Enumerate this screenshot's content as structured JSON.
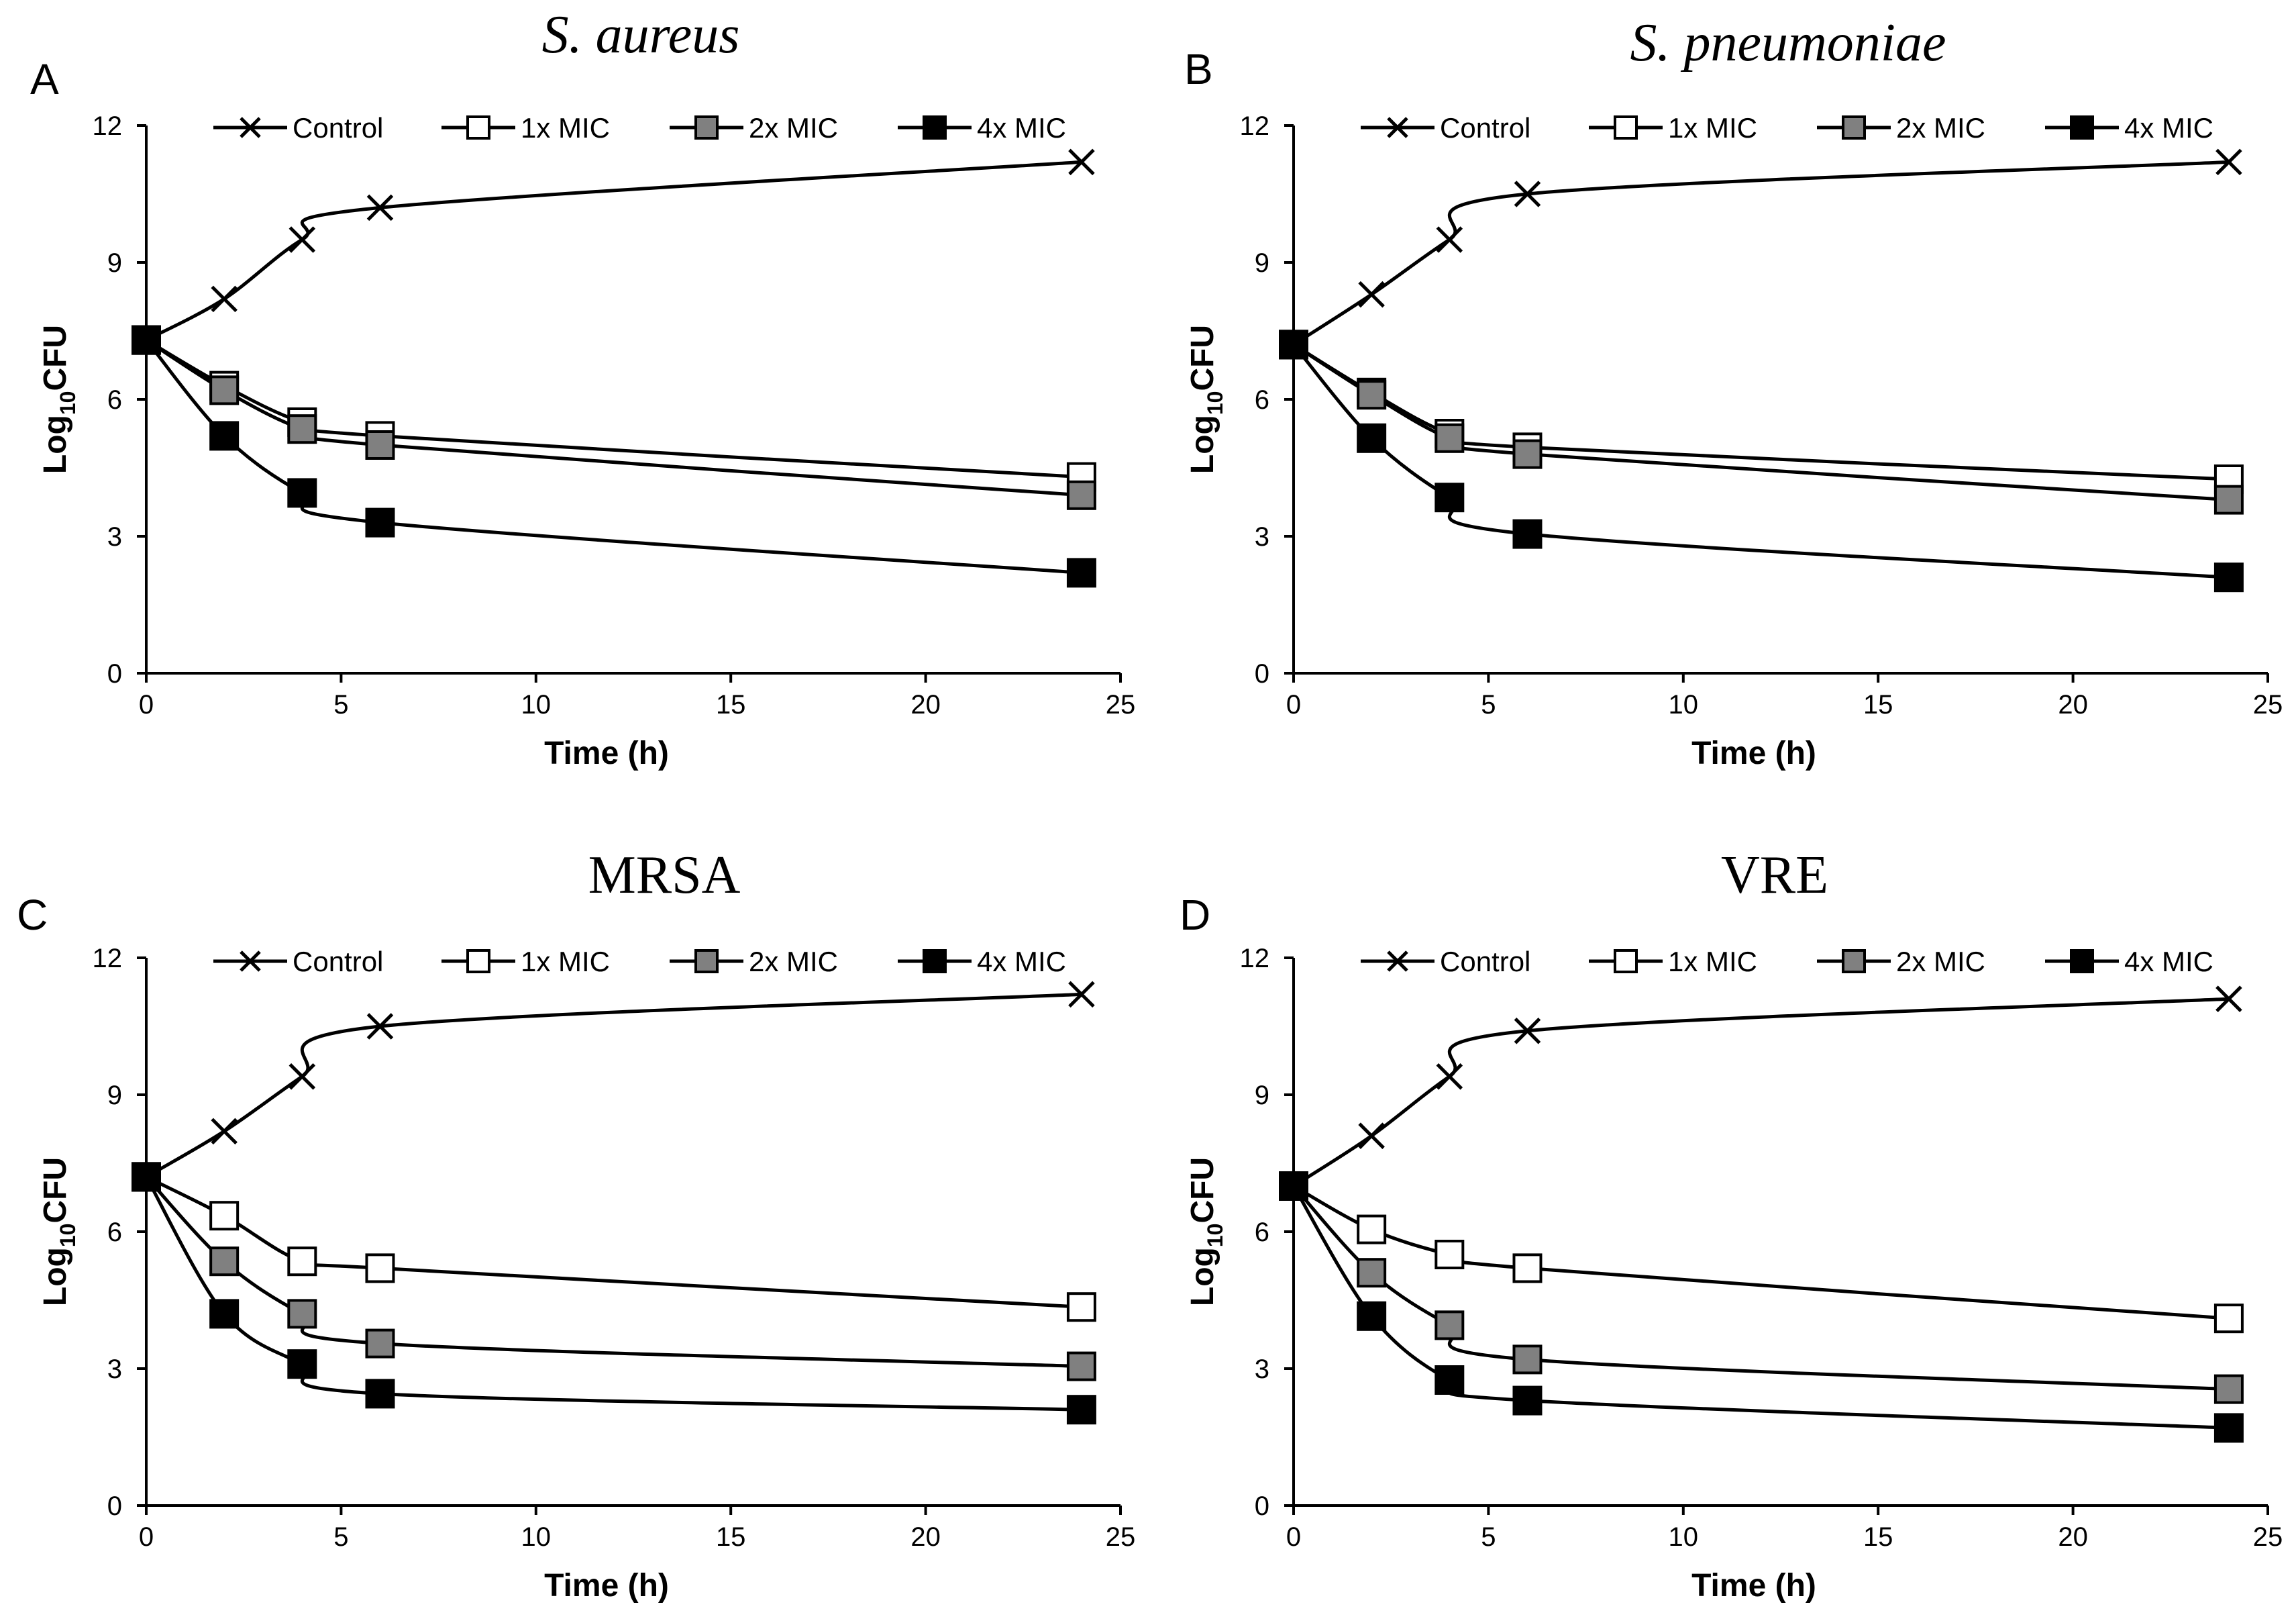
{
  "figure": {
    "legend": [
      "Control",
      "1x MIC",
      "2x MIC",
      "4x MIC"
    ],
    "marker_colors": {
      "control": "#000000",
      "mic1": "#ffffff",
      "mic2": "#808080",
      "mic4": "#000000"
    },
    "line_color": "#000000"
  },
  "chart_data": [
    {
      "type": "line",
      "panel": "A",
      "title": "S. aureus",
      "title_italic": true,
      "xlabel": "Time (h)",
      "ylabel": {
        "base": "Log",
        "sub": "10",
        "rest": "CFU"
      },
      "xlim": [
        0,
        25
      ],
      "ylim": [
        0,
        12
      ],
      "xticks": [
        0,
        5,
        10,
        15,
        20,
        25
      ],
      "yticks": [
        0,
        3,
        6,
        9,
        12
      ],
      "x": [
        0,
        2,
        4,
        6,
        24
      ],
      "series": [
        {
          "name": "Control",
          "marker": "x",
          "values": [
            7.3,
            8.2,
            9.5,
            10.2,
            11.2
          ]
        },
        {
          "name": "1x MIC",
          "marker": "square-white",
          "values": [
            7.3,
            6.3,
            5.5,
            5.2,
            4.3
          ]
        },
        {
          "name": "2x MIC",
          "marker": "square-gray",
          "values": [
            7.3,
            6.2,
            5.35,
            5.0,
            3.9
          ]
        },
        {
          "name": "4x MIC",
          "marker": "square-black",
          "values": [
            7.3,
            5.2,
            3.95,
            3.3,
            2.2
          ]
        }
      ]
    },
    {
      "type": "line",
      "panel": "B",
      "title": "S. pneumoniae",
      "title_italic": true,
      "xlabel": "Time (h)",
      "ylabel": {
        "base": "Log",
        "sub": "10",
        "rest": "CFU"
      },
      "xlim": [
        0,
        25
      ],
      "ylim": [
        0,
        12
      ],
      "xticks": [
        0,
        5,
        10,
        15,
        20,
        25
      ],
      "yticks": [
        0,
        3,
        6,
        9,
        12
      ],
      "x": [
        0,
        2,
        4,
        6,
        24
      ],
      "series": [
        {
          "name": "Control",
          "marker": "x",
          "values": [
            7.2,
            8.3,
            9.5,
            10.5,
            11.2
          ]
        },
        {
          "name": "1x MIC",
          "marker": "square-white",
          "values": [
            7.2,
            6.15,
            5.25,
            4.95,
            4.25
          ]
        },
        {
          "name": "2x MIC",
          "marker": "square-gray",
          "values": [
            7.2,
            6.1,
            5.15,
            4.8,
            3.8
          ]
        },
        {
          "name": "4x MIC",
          "marker": "square-black",
          "values": [
            7.2,
            5.15,
            3.85,
            3.05,
            2.1
          ]
        }
      ]
    },
    {
      "type": "line",
      "panel": "C",
      "title": "MRSA",
      "title_italic": false,
      "xlabel": "Time (h)",
      "ylabel": {
        "base": "Log",
        "sub": "10",
        "rest": "CFU"
      },
      "xlim": [
        0,
        25
      ],
      "ylim": [
        0,
        12
      ],
      "xticks": [
        0,
        5,
        10,
        15,
        20,
        25
      ],
      "yticks": [
        0,
        3,
        6,
        9,
        12
      ],
      "x": [
        0,
        2,
        4,
        6,
        24
      ],
      "series": [
        {
          "name": "Control",
          "marker": "x",
          "values": [
            7.2,
            8.2,
            9.4,
            10.5,
            11.2
          ]
        },
        {
          "name": "1x MIC",
          "marker": "square-white",
          "values": [
            7.2,
            6.35,
            5.35,
            5.2,
            4.35
          ]
        },
        {
          "name": "2x MIC",
          "marker": "square-gray",
          "values": [
            7.2,
            5.35,
            4.2,
            3.55,
            3.05
          ]
        },
        {
          "name": "4x MIC",
          "marker": "square-black",
          "values": [
            7.2,
            4.2,
            3.1,
            2.45,
            2.1
          ]
        }
      ]
    },
    {
      "type": "line",
      "panel": "D",
      "title": "VRE",
      "title_italic": false,
      "xlabel": "Time (h)",
      "ylabel": {
        "base": "Log",
        "sub": "10",
        "rest": "CFU"
      },
      "xlim": [
        0,
        25
      ],
      "ylim": [
        0,
        12
      ],
      "xticks": [
        0,
        5,
        10,
        15,
        20,
        25
      ],
      "yticks": [
        0,
        3,
        6,
        9,
        12
      ],
      "x": [
        0,
        2,
        4,
        6,
        24
      ],
      "series": [
        {
          "name": "Control",
          "marker": "x",
          "values": [
            7.0,
            8.1,
            9.4,
            10.4,
            11.1
          ]
        },
        {
          "name": "1x MIC",
          "marker": "square-white",
          "values": [
            7.0,
            6.05,
            5.5,
            5.2,
            4.1
          ]
        },
        {
          "name": "2x MIC",
          "marker": "square-gray",
          "values": [
            7.0,
            5.1,
            3.95,
            3.2,
            2.55
          ]
        },
        {
          "name": "4x MIC",
          "marker": "square-black",
          "values": [
            7.0,
            4.15,
            2.75,
            2.3,
            1.7
          ]
        }
      ]
    }
  ]
}
